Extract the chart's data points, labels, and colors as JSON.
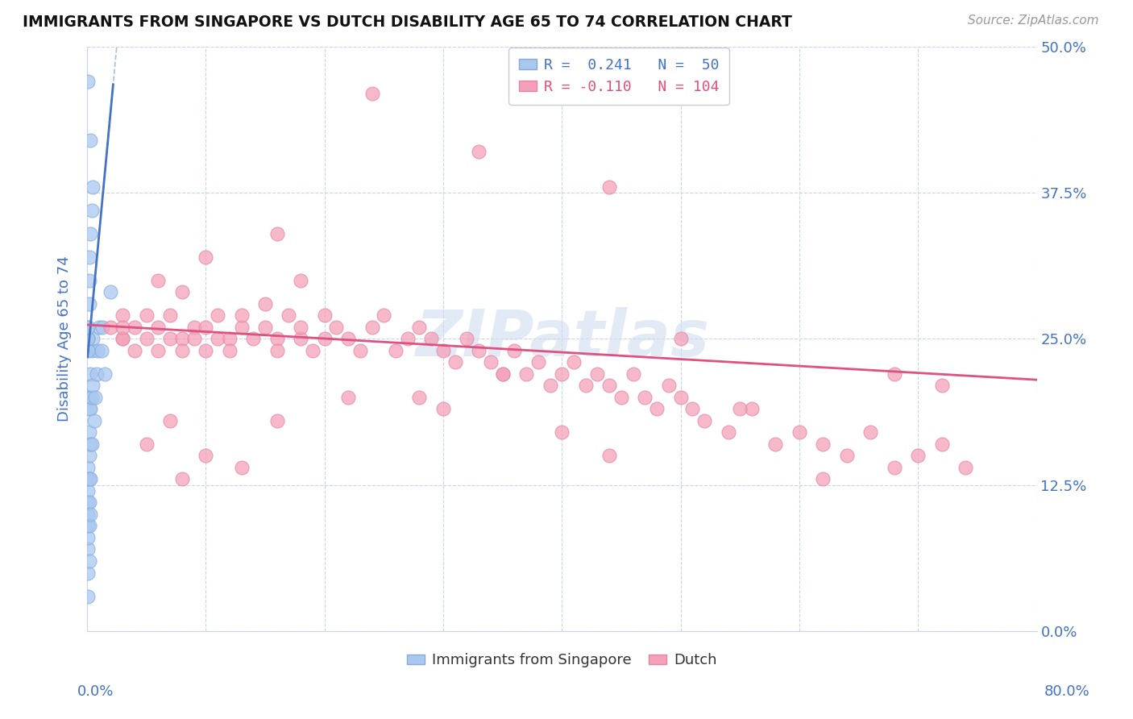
{
  "title": "IMMIGRANTS FROM SINGAPORE VS DUTCH DISABILITY AGE 65 TO 74 CORRELATION CHART",
  "source": "Source: ZipAtlas.com",
  "ylabel": "Disability Age 65 to 74",
  "ytick_vals": [
    0.0,
    0.125,
    0.25,
    0.375,
    0.5
  ],
  "xlim": [
    0.0,
    0.8
  ],
  "ylim": [
    0.0,
    0.5
  ],
  "singapore_color": "#a8c8f0",
  "dutch_color": "#f5a0b8",
  "trend_singapore_color": "#4472c4",
  "trend_dutch_color": "#e05080",
  "background_color": "#ffffff",
  "grid_color": "#c8d4e8",
  "axis_label_color": "#4472c4",
  "watermark_color": "#d0ddf0",
  "singapore_x": [
    0.001,
    0.001,
    0.001,
    0.001,
    0.001,
    0.001,
    0.001,
    0.001,
    0.001,
    0.001,
    0.002,
    0.002,
    0.002,
    0.002,
    0.002,
    0.002,
    0.002,
    0.002,
    0.003,
    0.003,
    0.003,
    0.003,
    0.003,
    0.004,
    0.004,
    0.004,
    0.005,
    0.005,
    0.006,
    0.007,
    0.008,
    0.009,
    0.01,
    0.012,
    0.013,
    0.015,
    0.001,
    0.001,
    0.001,
    0.001,
    0.001,
    0.001,
    0.002,
    0.002,
    0.002,
    0.003,
    0.004,
    0.005,
    0.02,
    0.003
  ],
  "singapore_y": [
    0.03,
    0.05,
    0.07,
    0.08,
    0.09,
    0.1,
    0.11,
    0.12,
    0.13,
    0.14,
    0.06,
    0.09,
    0.11,
    0.13,
    0.15,
    0.17,
    0.19,
    0.2,
    0.1,
    0.13,
    0.16,
    0.19,
    0.22,
    0.16,
    0.2,
    0.24,
    0.21,
    0.25,
    0.18,
    0.2,
    0.22,
    0.24,
    0.26,
    0.24,
    0.26,
    0.22,
    0.24,
    0.25,
    0.25,
    0.26,
    0.26,
    0.47,
    0.28,
    0.3,
    0.32,
    0.34,
    0.36,
    0.38,
    0.29,
    0.42
  ],
  "dutch_x": [
    0.02,
    0.03,
    0.03,
    0.04,
    0.04,
    0.05,
    0.05,
    0.06,
    0.06,
    0.07,
    0.07,
    0.08,
    0.08,
    0.09,
    0.09,
    0.1,
    0.1,
    0.11,
    0.11,
    0.12,
    0.12,
    0.13,
    0.13,
    0.14,
    0.15,
    0.15,
    0.16,
    0.16,
    0.17,
    0.18,
    0.18,
    0.19,
    0.2,
    0.2,
    0.21,
    0.22,
    0.23,
    0.24,
    0.25,
    0.26,
    0.27,
    0.28,
    0.29,
    0.3,
    0.31,
    0.32,
    0.33,
    0.34,
    0.35,
    0.36,
    0.37,
    0.38,
    0.39,
    0.4,
    0.41,
    0.42,
    0.43,
    0.44,
    0.45,
    0.46,
    0.47,
    0.48,
    0.49,
    0.5,
    0.51,
    0.52,
    0.54,
    0.56,
    0.58,
    0.6,
    0.62,
    0.64,
    0.66,
    0.68,
    0.7,
    0.72,
    0.74,
    0.62,
    0.44,
    0.3,
    0.18,
    0.1,
    0.08,
    0.06,
    0.03,
    0.72,
    0.55,
    0.4,
    0.28,
    0.16,
    0.1,
    0.07,
    0.05,
    0.03,
    0.68,
    0.5,
    0.35,
    0.22,
    0.13,
    0.08,
    0.44,
    0.33,
    0.24,
    0.16
  ],
  "dutch_y": [
    0.26,
    0.25,
    0.27,
    0.24,
    0.26,
    0.25,
    0.27,
    0.24,
    0.26,
    0.25,
    0.27,
    0.25,
    0.24,
    0.26,
    0.25,
    0.26,
    0.24,
    0.25,
    0.27,
    0.25,
    0.24,
    0.26,
    0.27,
    0.25,
    0.26,
    0.28,
    0.25,
    0.24,
    0.27,
    0.25,
    0.26,
    0.24,
    0.27,
    0.25,
    0.26,
    0.25,
    0.24,
    0.26,
    0.27,
    0.24,
    0.25,
    0.26,
    0.25,
    0.24,
    0.23,
    0.25,
    0.24,
    0.23,
    0.22,
    0.24,
    0.22,
    0.23,
    0.21,
    0.22,
    0.23,
    0.21,
    0.22,
    0.21,
    0.2,
    0.22,
    0.2,
    0.19,
    0.21,
    0.2,
    0.19,
    0.18,
    0.17,
    0.19,
    0.16,
    0.17,
    0.16,
    0.15,
    0.17,
    0.14,
    0.15,
    0.16,
    0.14,
    0.13,
    0.15,
    0.19,
    0.3,
    0.32,
    0.29,
    0.3,
    0.25,
    0.21,
    0.19,
    0.17,
    0.2,
    0.18,
    0.15,
    0.18,
    0.16,
    0.26,
    0.22,
    0.25,
    0.22,
    0.2,
    0.14,
    0.13,
    0.38,
    0.41,
    0.46,
    0.34
  ],
  "sg_trend_x0": -0.01,
  "sg_trend_x1": 0.025,
  "du_trend_x0": 0.0,
  "du_trend_x1": 0.8,
  "du_trend_y0": 0.262,
  "du_trend_y1": 0.215
}
